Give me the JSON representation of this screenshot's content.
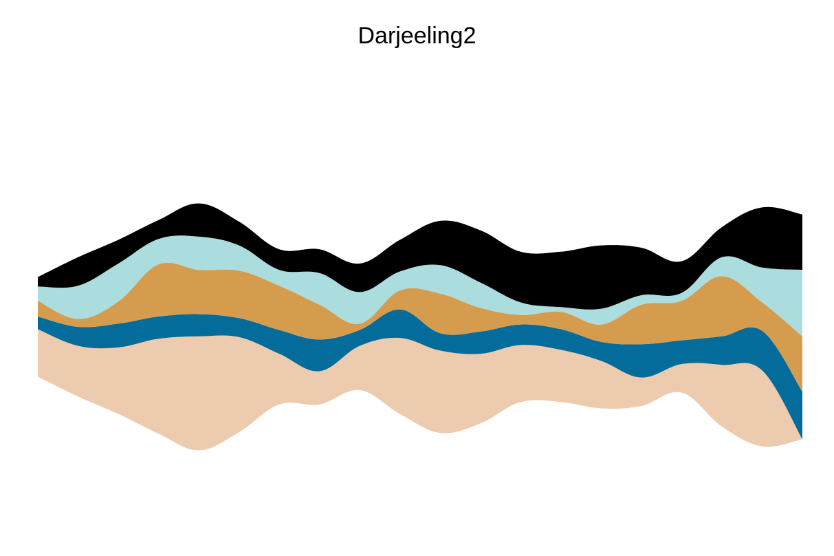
{
  "chart_data": {
    "type": "area",
    "subtype": "streamgraph",
    "title": "Darjeeling2",
    "xlabel": "",
    "ylabel": "",
    "axes_visible": false,
    "grid": false,
    "legend": "none",
    "x": [
      1,
      2,
      3,
      4,
      5,
      6,
      7,
      8,
      9,
      10,
      11,
      12,
      13,
      14,
      15,
      16,
      17,
      18,
      19,
      20
    ],
    "series": [
      {
        "color": "#ECCBAE",
        "values": [
          3.0,
          3.2,
          4.2,
          6.0,
          7.2,
          6.0,
          3.2,
          2.1,
          2.8,
          4.8,
          5.2,
          4.4,
          3.6,
          3.3,
          3.0,
          1.8,
          1.8,
          3.9,
          4.8,
          0.0
        ]
      },
      {
        "color": "#046C9A",
        "values": [
          0.8,
          1.2,
          1.5,
          1.4,
          1.4,
          1.2,
          1.5,
          2.0,
          1.0,
          1.8,
          1.1,
          1.4,
          1.3,
          1.3,
          1.2,
          2.1,
          1.5,
          1.8,
          2.5,
          3.0
        ]
      },
      {
        "color": "#D69C4E",
        "values": [
          1.0,
          0.5,
          1.4,
          3.3,
          2.8,
          3.0,
          2.8,
          2.2,
          0.4,
          1.2,
          2.5,
          1.5,
          0.6,
          1.1,
          1.1,
          2.5,
          2.5,
          3.8,
          1.8,
          3.5
        ]
      },
      {
        "color": "#ABDDDE",
        "values": [
          0.9,
          2.1,
          2.4,
          1.6,
          2.1,
          1.6,
          1.0,
          2.0,
          2.0,
          1.2,
          1.8,
          1.6,
          0.8,
          0.3,
          1.0,
          0.6,
          0.5,
          1.2,
          2.2,
          4.2
        ]
      },
      {
        "color": "#000000",
        "values": [
          0.6,
          1.8,
          1.5,
          1.2,
          2.1,
          1.5,
          1.3,
          1.5,
          1.8,
          2.0,
          2.8,
          3.3,
          3.2,
          3.5,
          4.0,
          3.0,
          2.0,
          1.9,
          3.8,
          3.5
        ]
      }
    ]
  }
}
